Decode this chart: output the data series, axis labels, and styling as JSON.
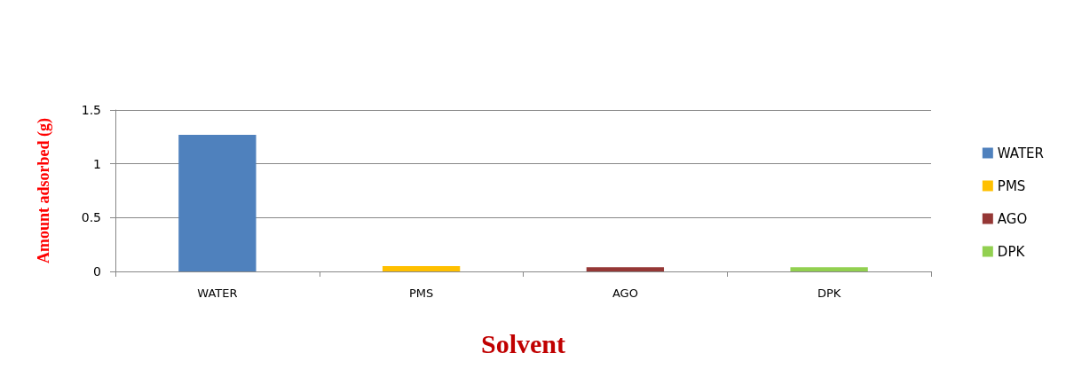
{
  "chart_data": {
    "type": "bar",
    "xlabel": "Solvent",
    "ylabel": "Amount adsorbed (g)",
    "categories": [
      "WATER",
      "PMS",
      "AGO",
      "DPK"
    ],
    "series": [
      {
        "name": "WATER",
        "color": "#4f81bd",
        "values": [
          1.27,
          null,
          null,
          null
        ]
      },
      {
        "name": "PMS",
        "color": "#ffc000",
        "values": [
          null,
          0.05,
          null,
          null
        ]
      },
      {
        "name": "AGO",
        "color": "#953735",
        "values": [
          null,
          null,
          0.04,
          null
        ]
      },
      {
        "name": "DPK",
        "color": "#92d050",
        "values": [
          null,
          null,
          null,
          0.04
        ]
      }
    ],
    "ylim": [
      0,
      1.5
    ],
    "yticks": [
      0,
      0.5,
      1,
      1.5
    ],
    "grid": "y",
    "legend": "right"
  }
}
